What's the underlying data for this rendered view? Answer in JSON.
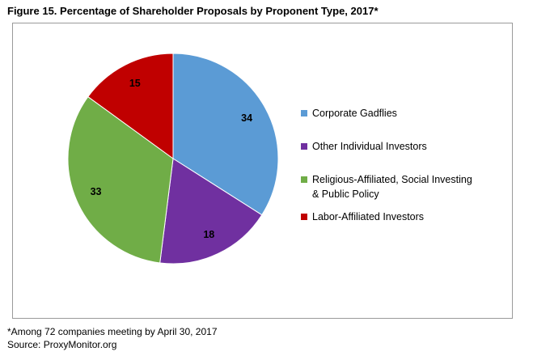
{
  "figure": {
    "title": "Figure 15. Percentage of Shareholder Proposals by Proponent Type, 2017*"
  },
  "chart_data": {
    "type": "pie",
    "title": "Figure 15. Percentage of Shareholder Proposals by Proponent Type, 2017*",
    "categories": [
      "Corporate Gadflies",
      "Other Individual Investors",
      "Religious-Affiliated, Social Investing & Public Policy",
      "Labor-Affiliated Investors"
    ],
    "values": [
      34,
      18,
      33,
      15
    ],
    "colors": [
      "#5b9bd5",
      "#7030a0",
      "#70ad47",
      "#c00000"
    ],
    "legend_position": "right",
    "legend": [
      {
        "label_line1": "Corporate Gadflies",
        "label_line2": ""
      },
      {
        "label_line1": "Other Individual Investors",
        "label_line2": ""
      },
      {
        "label_line1": "Religious-Affiliated, Social Investing",
        "label_line2": "& Public Policy"
      },
      {
        "label_line1": "Labor-Affiliated Investors",
        "label_line2": ""
      }
    ],
    "data_labels": [
      "34",
      "18",
      "33",
      "15"
    ]
  },
  "footnote": {
    "line1": "*Among 72 companies meeting by April 30, 2017",
    "line2": "Source: ProxyMonitor.org"
  }
}
